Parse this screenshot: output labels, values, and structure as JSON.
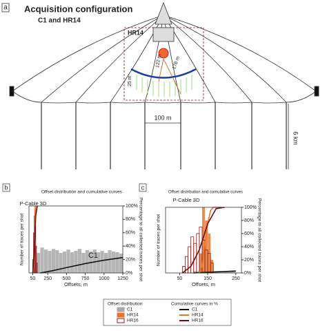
{
  "panel_a": {
    "label": "a",
    "title": "Acquisition configuration",
    "subtitle": "C1 and HR14",
    "inset_label": "HR14",
    "dimensions": [
      "122 m",
      "178 m",
      "25 m",
      "100 m",
      "6 km"
    ]
  },
  "legend": {
    "titles": [
      "Offset distribution",
      "Cumulative curves in %"
    ],
    "offset": [
      {
        "name": "C1",
        "color": "#a8a8a8"
      },
      {
        "name": "HR14",
        "color": "#e8742c"
      },
      {
        "name": "HR16",
        "color": "#8b1a1a"
      }
    ],
    "cumulative": [
      {
        "name": "C1",
        "color": "#111111"
      },
      {
        "name": "HR14",
        "color": "#e8742c"
      },
      {
        "name": "HR16",
        "color": "#6b0f0f"
      }
    ]
  },
  "chart_data": [
    {
      "type": "histogram",
      "panel_label": "b",
      "title": "Offset distribution and cumulative curves",
      "xlabel": "Offsets, m",
      "ylabel": "Number of traces per shot",
      "y2label": "Percentage to all collected traces per shot",
      "annotations": [
        {
          "text": "P-Cable 3D",
          "color": "#e8742c"
        },
        {
          "text": "C1",
          "color": "#111111"
        }
      ],
      "xlim": [
        0,
        1250
      ],
      "xticks": [
        50,
        250,
        500,
        750,
        1000,
        1250
      ],
      "ylim": [
        0,
        100
      ],
      "y2lim": [
        0,
        100
      ],
      "y2ticks": [
        {
          "value": 0,
          "label": "0%"
        },
        {
          "value": 20,
          "label": "20%"
        },
        {
          "value": 40,
          "label": "40%"
        },
        {
          "value": 60,
          "label": "60%"
        },
        {
          "value": 80,
          "label": "80%"
        },
        {
          "value": 100,
          "label": "100%"
        }
      ],
      "series": [
        {
          "type": "histogram",
          "style": "filled",
          "color": "#a8a8a8",
          "bins": [
            100,
            150,
            200,
            250,
            300,
            350,
            400,
            450,
            500,
            550,
            600,
            650,
            700,
            750,
            800,
            850,
            900,
            950,
            1000,
            1050,
            1100,
            1150,
            1200,
            1250
          ],
          "values": [
            30,
            38,
            35,
            33,
            36,
            34,
            30,
            32,
            35,
            31,
            33,
            36,
            30,
            34,
            32,
            35,
            31,
            33,
            30,
            34,
            32,
            31,
            29
          ]
        },
        {
          "type": "histogram",
          "style": "filled",
          "color": "#e8742c",
          "bins": [
            60,
            70,
            80,
            90
          ],
          "values": [
            30,
            100,
            40
          ]
        },
        {
          "type": "histogram",
          "style": "outline",
          "color": "#8b1a1a",
          "bins": [
            50,
            60,
            70,
            80,
            90,
            100,
            110
          ],
          "values": [
            20,
            60,
            85,
            70,
            40,
            15
          ]
        },
        {
          "type": "line",
          "axis": "y2",
          "color": "#111111",
          "x": [
            150,
            300,
            500,
            750,
            1000,
            1250
          ],
          "values": [
            0,
            3,
            8,
            14,
            19,
            23
          ]
        },
        {
          "type": "line",
          "axis": "y2",
          "color": "#e8742c",
          "x": [
            60,
            70,
            80,
            90
          ],
          "values": [
            0,
            20,
            85,
            100
          ]
        },
        {
          "type": "line",
          "axis": "y2",
          "color": "#6b0f0f",
          "x": [
            50,
            70,
            90,
            110
          ],
          "values": [
            0,
            30,
            85,
            100
          ]
        }
      ]
    },
    {
      "type": "histogram",
      "panel_label": "c",
      "title": "Offset distribution and cumulative curves",
      "xlabel": "Offsets, m",
      "ylabel": "Number of traces per shot",
      "y2label": "Percentage to all collected traces per shot",
      "annotations": [
        {
          "text": "P-Cable 3D",
          "color": "#111111"
        }
      ],
      "xlim": [
        0,
        270
      ],
      "xticks": [
        50,
        150,
        250
      ],
      "ylim": [
        0,
        100
      ],
      "y2lim": [
        0,
        100
      ],
      "y2ticks": [
        {
          "value": 0,
          "label": "0%"
        },
        {
          "value": 20,
          "label": "20%"
        },
        {
          "value": 40,
          "label": "40%"
        },
        {
          "value": 60,
          "label": "60%"
        },
        {
          "value": 80,
          "label": "80%"
        },
        {
          "value": 100,
          "label": "100%"
        }
      ],
      "series": [
        {
          "type": "histogram",
          "style": "filled",
          "color": "#a8a8a8",
          "bins": [
            100,
            150,
            200,
            250
          ],
          "values": [
            3,
            3,
            2
          ]
        },
        {
          "type": "histogram",
          "style": "filled",
          "color": "#e8742c",
          "bins": [
            120,
            130,
            140,
            150,
            160,
            170
          ],
          "values": [
            30,
            100,
            80,
            60,
            20
          ]
        },
        {
          "type": "histogram",
          "style": "outline",
          "color": "#8b1a1a",
          "bins": [
            60,
            70,
            80,
            90,
            100,
            110,
            120,
            130,
            140,
            150,
            160,
            170
          ],
          "values": [
            10,
            25,
            40,
            55,
            45,
            60,
            70,
            50,
            35,
            30,
            15
          ]
        },
        {
          "type": "line",
          "axis": "y2",
          "color": "#111111",
          "x": [
            100,
            250
          ],
          "values": [
            0,
            3
          ]
        },
        {
          "type": "line",
          "axis": "y2",
          "color": "#e8742c",
          "x": [
            120,
            130,
            140,
            150,
            160,
            170,
            200
          ],
          "values": [
            0,
            10,
            45,
            75,
            95,
            100,
            100
          ]
        },
        {
          "type": "line",
          "axis": "y2",
          "color": "#6b0f0f",
          "x": [
            60,
            90,
            120,
            150,
            180,
            210
          ],
          "values": [
            0,
            10,
            35,
            75,
            98,
            100
          ]
        }
      ]
    }
  ]
}
